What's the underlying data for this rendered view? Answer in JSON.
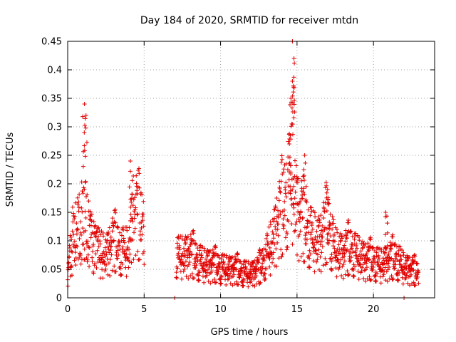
{
  "chart_data": {
    "type": "scatter",
    "title": "Day 184 of 2020, SRMTID for receiver mtdn",
    "xlabel": "GPS time / hours",
    "ylabel": "SRMTID / TECUs",
    "xlim": [
      0,
      24
    ],
    "ylim": [
      0,
      0.45
    ],
    "x_ticks": [
      0,
      5,
      10,
      15,
      20
    ],
    "x_tick_labels": [
      "0",
      "5",
      "10",
      "15",
      "20"
    ],
    "y_ticks": [
      0,
      0.05,
      0.1,
      0.15,
      0.2,
      0.25,
      0.3,
      0.35,
      0.4,
      0.45
    ],
    "y_tick_labels": [
      "0",
      "0.05",
      "0.1",
      "0.15",
      "0.2",
      "0.25",
      "0.3",
      "0.35",
      "0.4",
      "0.45"
    ],
    "grid": true,
    "marker": "+",
    "marker_color": "#e00000",
    "series": [
      {
        "name": "SRMTID",
        "segments": [
          {
            "t0": 0.0,
            "t1": 5.0,
            "n": 340
          },
          {
            "t0": 7.1,
            "t1": 22.95,
            "n": 1150
          }
        ],
        "profile": {
          "x": [
            0.0,
            0.2,
            0.5,
            0.8,
            1.0,
            1.2,
            1.5,
            2.0,
            2.5,
            3.0,
            3.5,
            4.0,
            4.3,
            4.6,
            5.0,
            7.1,
            8.0,
            9.0,
            10.0,
            11.0,
            12.0,
            12.5,
            13.0,
            13.5,
            14.0,
            14.4,
            14.7,
            15.0,
            15.5,
            16.0,
            16.5,
            17.0,
            17.5,
            18.0,
            18.5,
            19.0,
            19.5,
            20.0,
            20.5,
            21.0,
            21.5,
            22.0,
            22.95
          ],
          "y": [
            0.03,
            0.08,
            0.11,
            0.12,
            0.15,
            0.13,
            0.1,
            0.08,
            0.07,
            0.09,
            0.08,
            0.08,
            0.14,
            0.13,
            0.12,
            0.07,
            0.07,
            0.055,
            0.05,
            0.045,
            0.04,
            0.045,
            0.07,
            0.1,
            0.14,
            0.18,
            0.2,
            0.14,
            0.12,
            0.1,
            0.09,
            0.12,
            0.08,
            0.07,
            0.08,
            0.07,
            0.06,
            0.06,
            0.055,
            0.06,
            0.065,
            0.05,
            0.04
          ]
        },
        "peaks": [
          {
            "x": 1.1,
            "y": 0.34
          },
          {
            "x": 1.2,
            "y": 0.32
          },
          {
            "x": 4.1,
            "y": 0.24
          },
          {
            "x": 14.7,
            "y": 0.45
          },
          {
            "x": 14.8,
            "y": 0.42
          },
          {
            "x": 14.7,
            "y": 0.38
          },
          {
            "x": 14.6,
            "y": 0.35
          },
          {
            "x": 14.5,
            "y": 0.27
          },
          {
            "x": 15.5,
            "y": 0.25
          },
          {
            "x": 17.0,
            "y": 0.19
          },
          {
            "x": 20.8,
            "y": 0.15
          }
        ],
        "isolated_points": [
          {
            "x": 7.0,
            "y": 0.0
          },
          {
            "x": 22.0,
            "y": 0.0
          }
        ]
      }
    ]
  }
}
